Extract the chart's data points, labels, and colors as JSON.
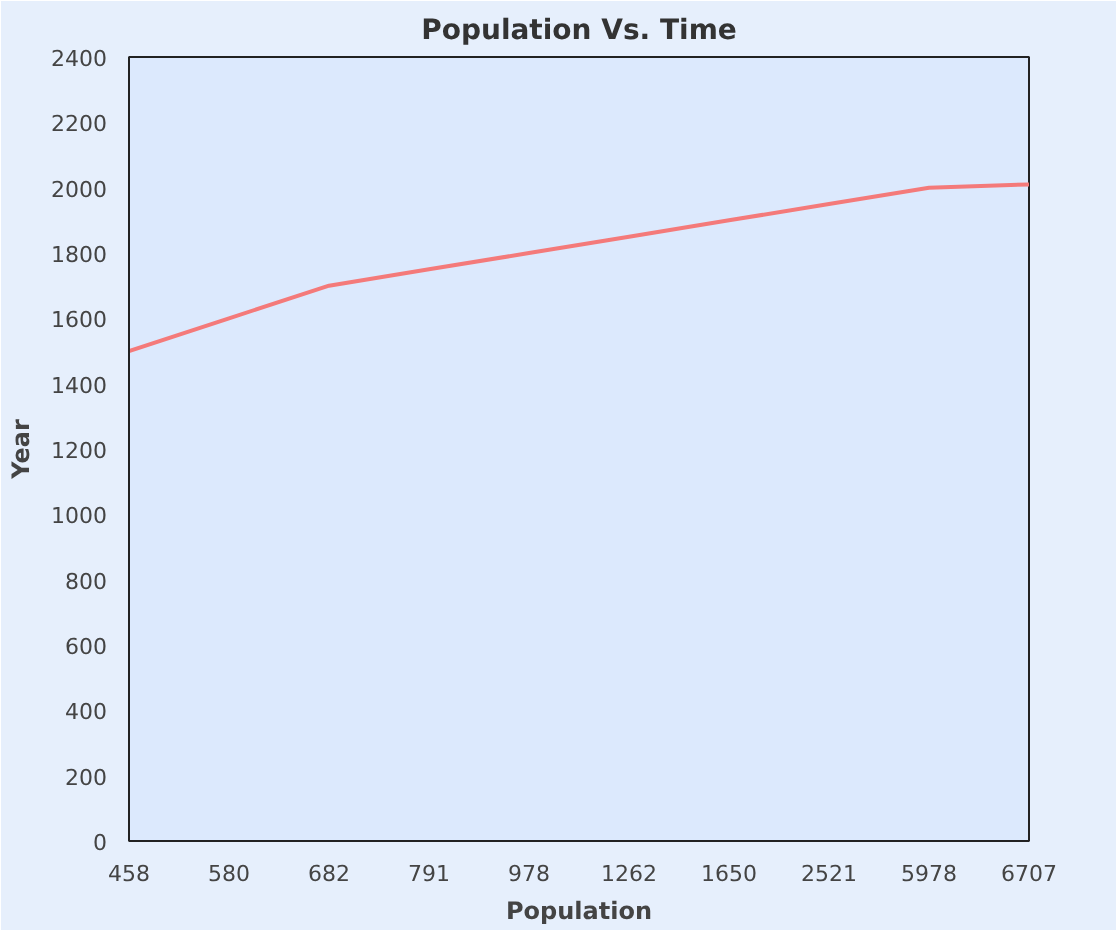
{
  "chart_data": {
    "type": "line",
    "title": "Population Vs. Time",
    "xlabel": "Population",
    "ylabel": "Year",
    "categories": [
      "458",
      "580",
      "682",
      "791",
      "978",
      "1262",
      "1650",
      "2521",
      "5978",
      "6707"
    ],
    "series": [
      {
        "color": "#f47a7a",
        "values": [
          1500,
          1600,
          1700,
          1750,
          1800,
          1850,
          1900,
          1950,
          2000,
          2010
        ]
      }
    ],
    "ylim": [
      0,
      2400
    ],
    "yticks": [
      0,
      200,
      400,
      600,
      800,
      1000,
      1200,
      1400,
      1600,
      1800,
      2000,
      2200,
      2400
    ],
    "grid": false,
    "marker": "none",
    "line_style": "solid"
  }
}
